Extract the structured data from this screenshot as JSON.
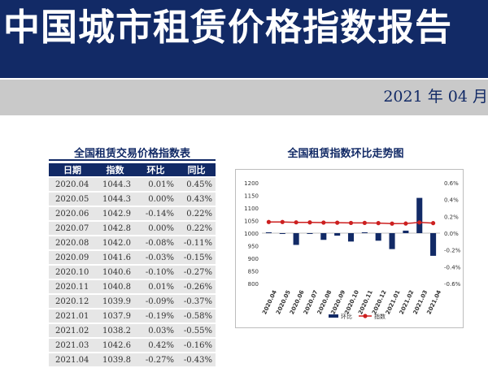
{
  "header": {
    "title": "中国城市租赁价格指数报告",
    "date": "2021 年 04 月"
  },
  "table": {
    "title": "全国租赁交易价格指数表",
    "columns": [
      "日期",
      "指数",
      "环比",
      "同比"
    ],
    "rows": [
      {
        "date": "2020.04",
        "index": "1044.3",
        "mom": "0.01%",
        "yoy": "0.45%"
      },
      {
        "date": "2020.05",
        "index": "1044.3",
        "mom": "0.00%",
        "yoy": "0.43%"
      },
      {
        "date": "2020.06",
        "index": "1042.9",
        "mom": "-0.14%",
        "yoy": "0.22%"
      },
      {
        "date": "2020.07",
        "index": "1042.8",
        "mom": "0.00%",
        "yoy": "0.22%"
      },
      {
        "date": "2020.08",
        "index": "1042.0",
        "mom": "-0.08%",
        "yoy": "-0.11%"
      },
      {
        "date": "2020.09",
        "index": "1041.6",
        "mom": "-0.03%",
        "yoy": "-0.15%"
      },
      {
        "date": "2020.10",
        "index": "1040.6",
        "mom": "-0.10%",
        "yoy": "-0.27%"
      },
      {
        "date": "2020.11",
        "index": "1040.8",
        "mom": "0.01%",
        "yoy": "-0.26%"
      },
      {
        "date": "2020.12",
        "index": "1039.9",
        "mom": "-0.09%",
        "yoy": "-0.37%"
      },
      {
        "date": "2021.01",
        "index": "1037.9",
        "mom": "-0.19%",
        "yoy": "-0.58%"
      },
      {
        "date": "2021.02",
        "index": "1038.2",
        "mom": "0.03%",
        "yoy": "-0.55%"
      },
      {
        "date": "2021.03",
        "index": "1042.6",
        "mom": "0.42%",
        "yoy": "-0.16%"
      },
      {
        "date": "2021.04",
        "index": "1039.8",
        "mom": "-0.27%",
        "yoy": "-0.43%"
      }
    ]
  },
  "chart_data": {
    "type": "bar",
    "title": "全国租赁指数环比走势图",
    "categories": [
      "2020.04",
      "2020.05",
      "2020.06",
      "2020.07",
      "2020.08",
      "2020.09",
      "2020.10",
      "2020.11",
      "2020.12",
      "2021.01",
      "2021.02",
      "2021.03",
      "2021.04"
    ],
    "series": [
      {
        "name": "环比",
        "kind": "bar",
        "axis": "right",
        "color": "#122a66",
        "values": [
          0.01,
          0.0,
          -0.14,
          0.0,
          -0.08,
          -0.03,
          -0.1,
          0.01,
          -0.09,
          -0.19,
          0.03,
          0.42,
          -0.27
        ]
      },
      {
        "name": "指数",
        "kind": "line",
        "axis": "left",
        "color": "#cc1f1f",
        "values": [
          1044.3,
          1044.3,
          1042.9,
          1042.8,
          1042.0,
          1041.6,
          1040.6,
          1040.8,
          1039.9,
          1037.9,
          1038.2,
          1042.6,
          1039.8
        ]
      }
    ],
    "y_left": {
      "min": 800,
      "max": 1200,
      "ticks": [
        "1200",
        "1150",
        "1100",
        "1050",
        "1000",
        "950",
        "900",
        "850",
        "800"
      ]
    },
    "y_right": {
      "min": -0.6,
      "max": 0.6,
      "ticks": [
        "0.6%",
        "0.4%",
        "0.2%",
        "0.0%",
        "-0.2%",
        "-0.4%",
        "-0.6%"
      ]
    },
    "grid": false,
    "legend_position": "bottom"
  }
}
